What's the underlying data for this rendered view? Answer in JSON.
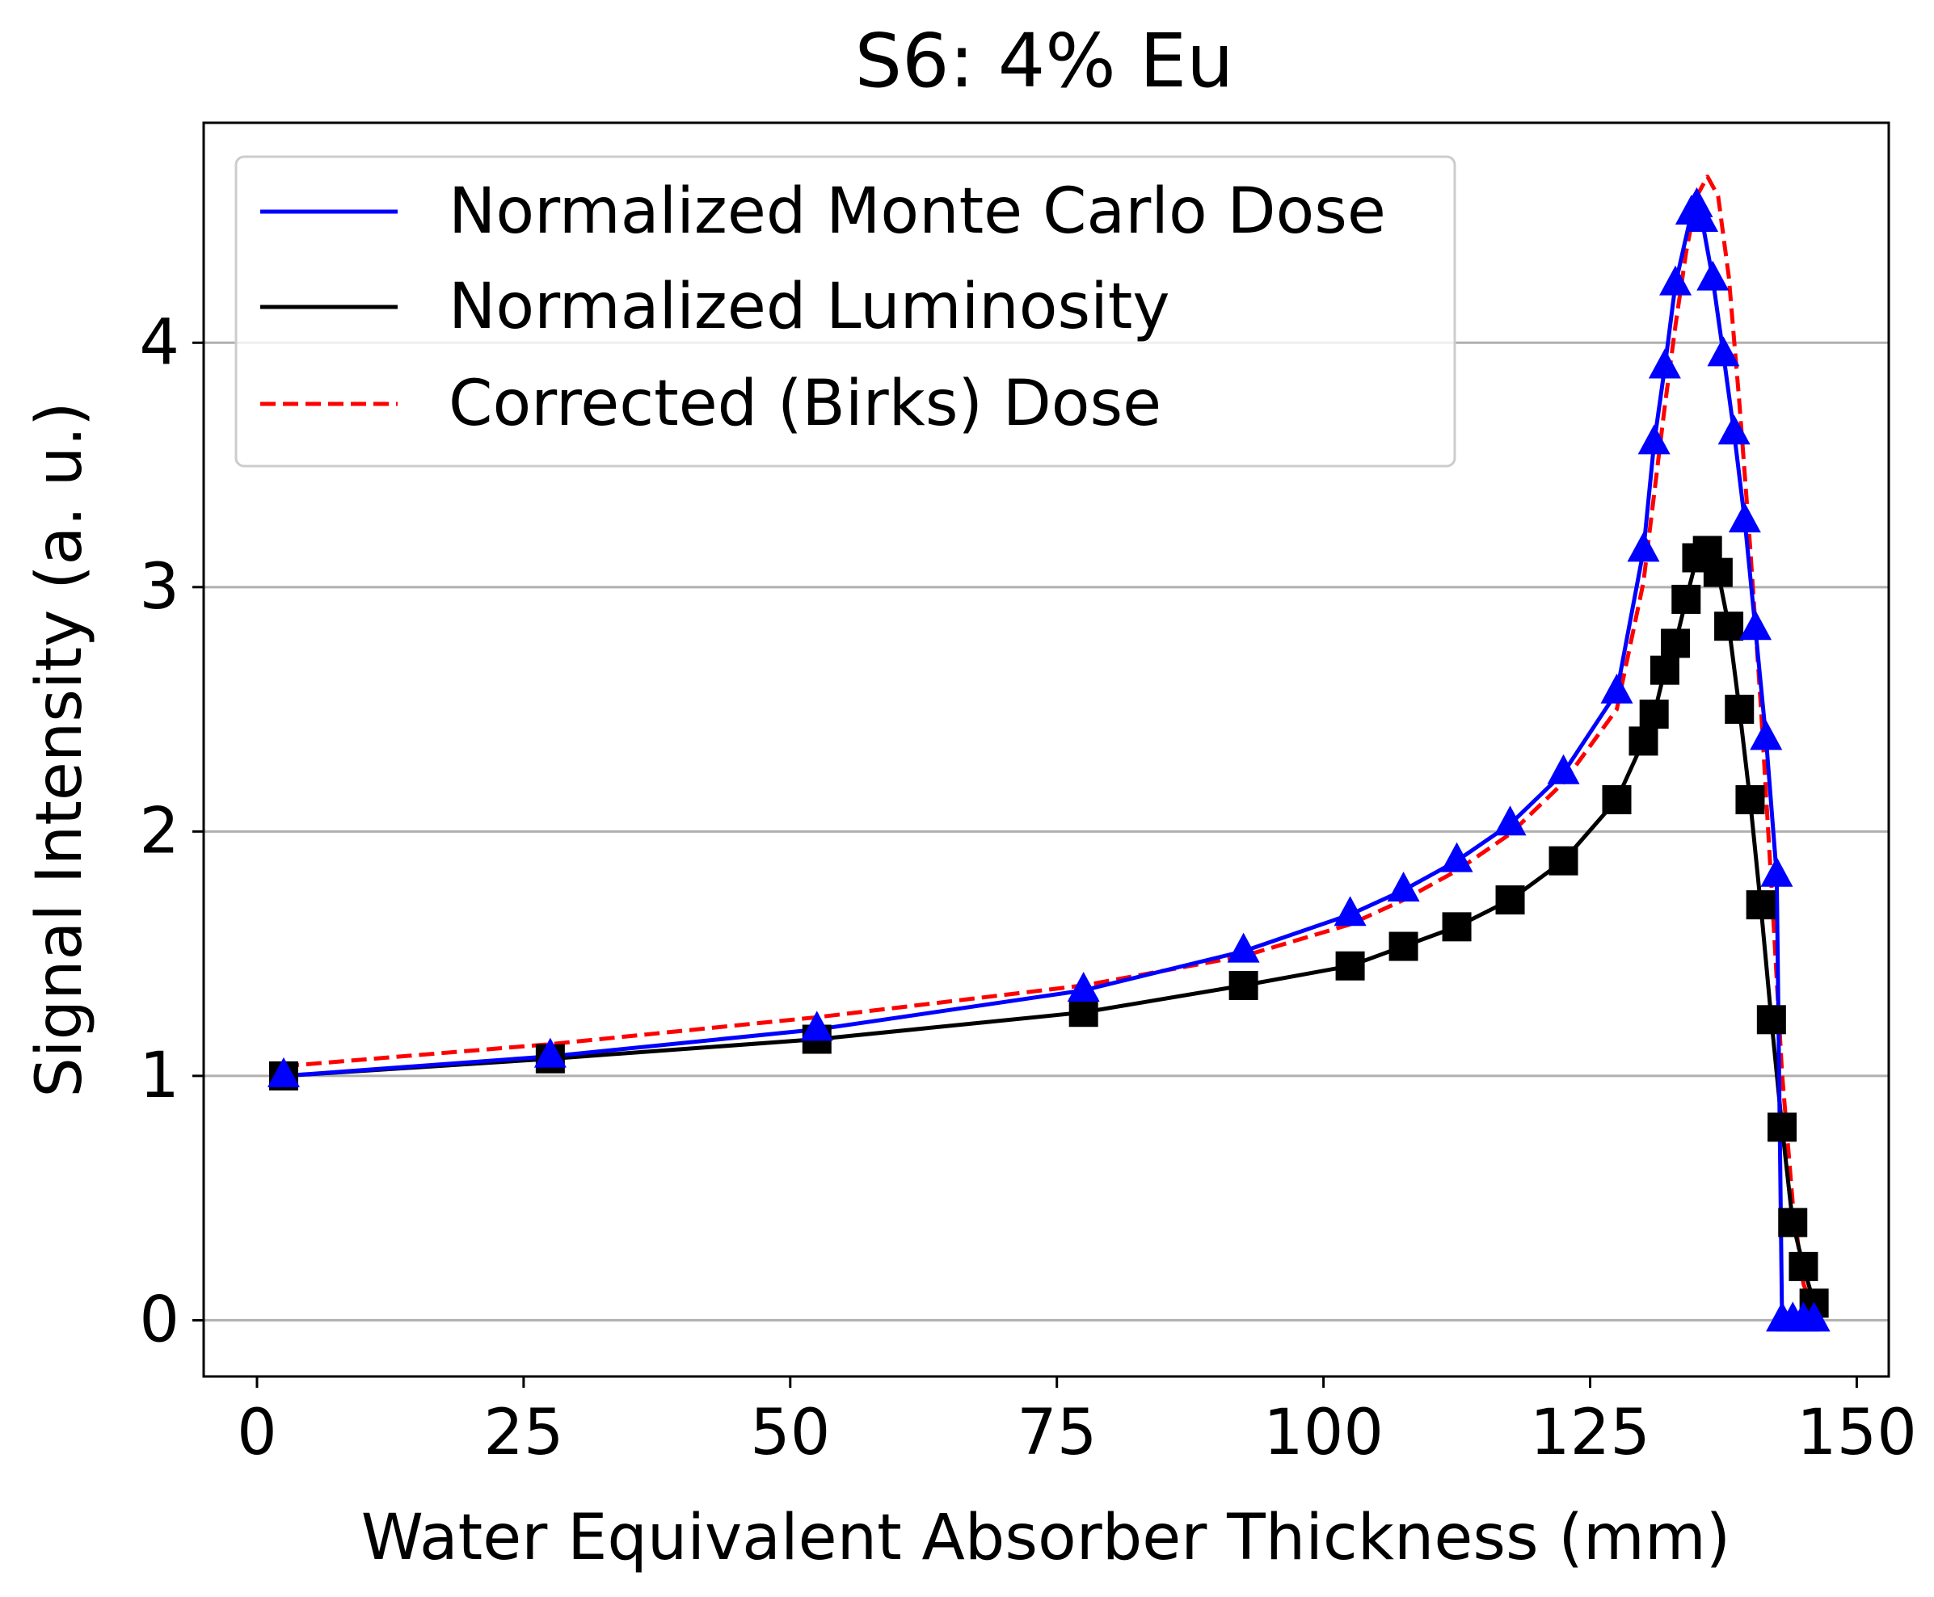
{
  "chart_data": {
    "type": "line",
    "title": "S6: 4% Eu",
    "xlabel": "Water Equivalent Absorber Thickness (mm)",
    "ylabel": "Signal Intensity (a. u.)",
    "xlim": [
      -5,
      153
    ],
    "ylim": [
      -0.23,
      4.9
    ],
    "xticks": [
      0,
      25,
      50,
      75,
      100,
      125,
      150
    ],
    "yticks": [
      0,
      1,
      2,
      3,
      4
    ],
    "xtick_labels": [
      "0",
      "25",
      "50",
      "75",
      "100",
      "125",
      "150"
    ],
    "ytick_labels": [
      "0",
      "1",
      "2",
      "3",
      "4"
    ],
    "grid": "horizontal",
    "legend_position": "top-left",
    "series": [
      {
        "name": "Normalized Monte Carlo Dose",
        "color": "#0000ff",
        "style": "solid",
        "marker": "triangle",
        "x": [
          2.5,
          27.5,
          52.5,
          77.5,
          92.5,
          102.5,
          107.5,
          112.5,
          117.5,
          122.5,
          127.5,
          130.0,
          131.0,
          132.0,
          133.0,
          134.5,
          135.0,
          135.5,
          136.5,
          137.5,
          138.5,
          139.5,
          140.5,
          141.5,
          142.5,
          143.0,
          144.0,
          145.0,
          146.0
        ],
        "y": [
          1.0,
          1.08,
          1.19,
          1.35,
          1.51,
          1.66,
          1.76,
          1.88,
          2.03,
          2.24,
          2.57,
          3.15,
          3.59,
          3.9,
          4.24,
          4.53,
          4.56,
          4.5,
          4.26,
          3.95,
          3.63,
          3.27,
          2.83,
          2.38,
          1.82,
          0.0,
          0.0,
          0.0,
          0.0
        ]
      },
      {
        "name": "Normalized Luminosity",
        "color": "#000000",
        "style": "solid",
        "marker": "square",
        "x": [
          2.5,
          27.5,
          52.5,
          77.5,
          92.5,
          102.5,
          107.5,
          112.5,
          117.5,
          122.5,
          127.5,
          130.0,
          131.0,
          132.0,
          133.0,
          134.0,
          135.0,
          136.0,
          137.0,
          138.0,
          139.0,
          140.0,
          141.0,
          142.0,
          143.0,
          144.0,
          145.0,
          146.0
        ],
        "y": [
          1.0,
          1.07,
          1.15,
          1.26,
          1.37,
          1.45,
          1.53,
          1.61,
          1.72,
          1.88,
          2.13,
          2.37,
          2.48,
          2.66,
          2.77,
          2.95,
          3.12,
          3.15,
          3.06,
          2.84,
          2.5,
          2.13,
          1.7,
          1.23,
          0.79,
          0.4,
          0.22,
          0.07
        ]
      },
      {
        "name": "Corrected (Birks) Dose",
        "color": "#ff0000",
        "style": "dashed",
        "marker": "none",
        "x": [
          2.5,
          27.5,
          52.5,
          77.5,
          92.5,
          102.5,
          107.5,
          112.5,
          117.5,
          122.5,
          127.5,
          130.0,
          131.0,
          132.0,
          133.0,
          134.0,
          135.0,
          136.0,
          137.0,
          138.0,
          139.0,
          140.0,
          141.0,
          142.0,
          143.0,
          144.0,
          145.0,
          146.0
        ],
        "y": [
          1.04,
          1.13,
          1.24,
          1.37,
          1.49,
          1.62,
          1.72,
          1.84,
          1.99,
          2.2,
          2.5,
          3.02,
          3.38,
          3.74,
          4.07,
          4.37,
          4.6,
          4.68,
          4.6,
          4.27,
          3.75,
          3.17,
          2.52,
          1.78,
          1.01,
          0.48,
          0.15,
          0.03
        ]
      }
    ]
  }
}
